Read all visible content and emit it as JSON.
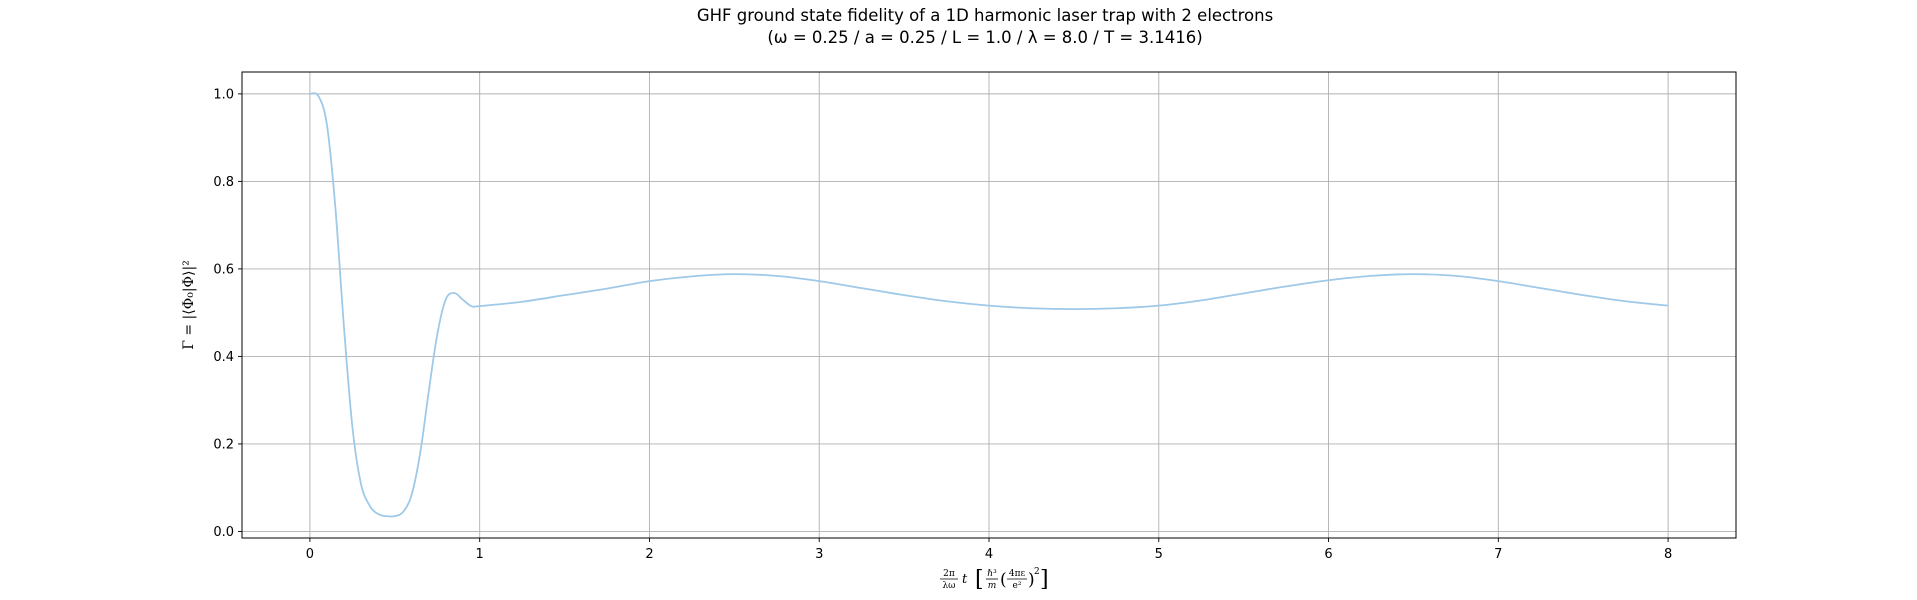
{
  "chart_data": {
    "type": "line",
    "title": "GHF ground state fidelity of a 1D harmonic laser trap with 2 electrons",
    "subtitle": "(ω = 0.25 / a = 0.25 / L = 1.0 / λ = 8.0 / T = 3.1416)",
    "ylabel": "Γ = |⟨Φ₀|Φ⟩|²",
    "xlabel": {
      "frac_top": "2π",
      "frac_bottom": "λω",
      "var": "t",
      "h_top": "ℏ³",
      "h_bottom": "m",
      "inner_top": "4πε",
      "inner_bottom": "e²",
      "exponent": "2"
    },
    "xlim": [
      -0.4,
      8.4
    ],
    "ylim": [
      -0.015,
      1.05
    ],
    "x_ticks": [
      "0",
      "1",
      "2",
      "3",
      "4",
      "5",
      "6",
      "7",
      "8"
    ],
    "y_ticks": [
      "0.0",
      "0.2",
      "0.4",
      "0.6",
      "0.8",
      "1.0"
    ],
    "grid": true,
    "line_color": "#9ec9e8",
    "series": [
      {
        "x": [
          0,
          0.05,
          0.1,
          0.15,
          0.2,
          0.25,
          0.3,
          0.35,
          0.4,
          0.45,
          0.5,
          0.55,
          0.6,
          0.65,
          0.7,
          0.75,
          0.8,
          0.85,
          0.9,
          0.95,
          1.0,
          1.25,
          1.5,
          1.75,
          2.0,
          2.25,
          2.5,
          2.75,
          3.0,
          3.25,
          3.5,
          3.75,
          4.0,
          4.25,
          4.5,
          4.75,
          5.0,
          5.25,
          5.5,
          5.75,
          6.0,
          6.25,
          6.5,
          6.75,
          7.0,
          7.25,
          7.5,
          7.75,
          8.0
        ],
        "y": [
          1.0,
          0.995,
          0.93,
          0.74,
          0.47,
          0.24,
          0.11,
          0.06,
          0.04,
          0.035,
          0.035,
          0.045,
          0.085,
          0.18,
          0.32,
          0.45,
          0.53,
          0.545,
          0.53,
          0.515,
          0.515,
          0.525,
          0.54,
          0.555,
          0.572,
          0.583,
          0.588,
          0.584,
          0.572,
          0.556,
          0.54,
          0.526,
          0.516,
          0.51,
          0.508,
          0.51,
          0.516,
          0.528,
          0.544,
          0.56,
          0.574,
          0.584,
          0.588,
          0.584,
          0.572,
          0.556,
          0.54,
          0.526,
          0.516
        ]
      }
    ]
  }
}
